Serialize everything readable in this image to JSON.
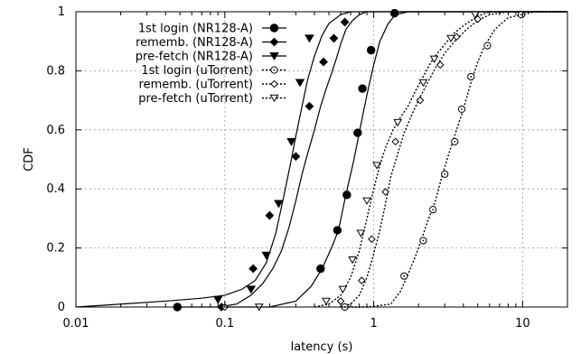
{
  "chart_data": {
    "type": "line",
    "xlabel": "latency (s)",
    "ylabel": "CDF",
    "x_scale": "log",
    "xlim": [
      0.01,
      20
    ],
    "ylim": [
      0,
      1
    ],
    "grid": true,
    "legend_position": "top-left",
    "x_ticks": [
      {
        "value": 0.01,
        "label": "0.01"
      },
      {
        "value": 0.1,
        "label": "0.1"
      },
      {
        "value": 1,
        "label": "1"
      },
      {
        "value": 10,
        "label": "10"
      }
    ],
    "y_ticks": [
      {
        "value": 0,
        "label": "0"
      },
      {
        "value": 0.2,
        "label": "0.2"
      },
      {
        "value": 0.4,
        "label": "0.4"
      },
      {
        "value": 0.6,
        "label": "0.6"
      },
      {
        "value": 0.8,
        "label": "0.8"
      },
      {
        "value": 1,
        "label": "1"
      }
    ],
    "series": [
      {
        "name": "1st login (NR128-A)",
        "dash": "solid",
        "marker": "filled-circle",
        "curve": [
          [
            0.05,
            0
          ],
          [
            0.2,
            0
          ],
          [
            0.3,
            0.02
          ],
          [
            0.38,
            0.07
          ],
          [
            0.45,
            0.13
          ],
          [
            0.52,
            0.2
          ],
          [
            0.58,
            0.26
          ],
          [
            0.65,
            0.38
          ],
          [
            0.73,
            0.49
          ],
          [
            0.8,
            0.59
          ],
          [
            0.86,
            0.67
          ],
          [
            0.92,
            0.74
          ],
          [
            1.0,
            0.82
          ],
          [
            1.1,
            0.9
          ],
          [
            1.25,
            0.96
          ],
          [
            1.4,
            0.99
          ],
          [
            1.7,
            1
          ],
          [
            20,
            1
          ]
        ],
        "markers": [
          [
            0.048,
            0
          ],
          [
            0.44,
            0.13
          ],
          [
            0.57,
            0.26
          ],
          [
            0.66,
            0.38
          ],
          [
            0.78,
            0.59
          ],
          [
            0.84,
            0.74
          ],
          [
            0.96,
            0.87
          ],
          [
            1.38,
            0.995
          ]
        ]
      },
      {
        "name": "rememb. (NR128-A)",
        "dash": "solid",
        "marker": "filled-diamond",
        "curve": [
          [
            0.09,
            0
          ],
          [
            0.12,
            0.01
          ],
          [
            0.15,
            0.04
          ],
          [
            0.18,
            0.08
          ],
          [
            0.21,
            0.13
          ],
          [
            0.24,
            0.19
          ],
          [
            0.27,
            0.27
          ],
          [
            0.3,
            0.36
          ],
          [
            0.33,
            0.45
          ],
          [
            0.36,
            0.52
          ],
          [
            0.4,
            0.6
          ],
          [
            0.44,
            0.68
          ],
          [
            0.48,
            0.74
          ],
          [
            0.52,
            0.79
          ],
          [
            0.56,
            0.84
          ],
          [
            0.6,
            0.89
          ],
          [
            0.65,
            0.94
          ],
          [
            0.72,
            0.97
          ],
          [
            0.8,
            0.99
          ],
          [
            0.9,
            1
          ],
          [
            20,
            1
          ]
        ],
        "markers": [
          [
            0.095,
            0
          ],
          [
            0.155,
            0.13
          ],
          [
            0.2,
            0.31
          ],
          [
            0.3,
            0.51
          ],
          [
            0.37,
            0.68
          ],
          [
            0.46,
            0.83
          ],
          [
            0.54,
            0.91
          ],
          [
            0.64,
            0.965
          ]
        ]
      },
      {
        "name": "pre-fetch (NR128-A)",
        "dash": "solid",
        "marker": "filled-triangle-down",
        "curve": [
          [
            0.01,
            0
          ],
          [
            0.02,
            0.01
          ],
          [
            0.04,
            0.02
          ],
          [
            0.07,
            0.03
          ],
          [
            0.1,
            0.04
          ],
          [
            0.13,
            0.06
          ],
          [
            0.16,
            0.09
          ],
          [
            0.19,
            0.15
          ],
          [
            0.22,
            0.25
          ],
          [
            0.25,
            0.38
          ],
          [
            0.28,
            0.5
          ],
          [
            0.3,
            0.58
          ],
          [
            0.33,
            0.68
          ],
          [
            0.36,
            0.77
          ],
          [
            0.4,
            0.85
          ],
          [
            0.45,
            0.92
          ],
          [
            0.5,
            0.96
          ],
          [
            0.6,
            0.99
          ],
          [
            0.7,
            1
          ],
          [
            20,
            1
          ]
        ],
        "markers": [
          [
            0.09,
            0.025
          ],
          [
            0.15,
            0.06
          ],
          [
            0.19,
            0.175
          ],
          [
            0.23,
            0.35
          ],
          [
            0.28,
            0.56
          ],
          [
            0.32,
            0.76
          ],
          [
            0.37,
            0.91
          ]
        ]
      },
      {
        "name": "1st login (uTorrent)",
        "dash": "dotted",
        "marker": "open-circle",
        "curve": [
          [
            0.6,
            0
          ],
          [
            0.9,
            0
          ],
          [
            1.3,
            0.01
          ],
          [
            1.5,
            0.05
          ],
          [
            1.7,
            0.11
          ],
          [
            1.9,
            0.17
          ],
          [
            2.1,
            0.23
          ],
          [
            2.3,
            0.29
          ],
          [
            2.6,
            0.36
          ],
          [
            2.9,
            0.45
          ],
          [
            3.2,
            0.52
          ],
          [
            3.6,
            0.6
          ],
          [
            4.0,
            0.67
          ],
          [
            4.5,
            0.76
          ],
          [
            5.0,
            0.83
          ],
          [
            5.5,
            0.88
          ],
          [
            6.5,
            0.94
          ],
          [
            8.0,
            0.98
          ],
          [
            10,
            0.99
          ],
          [
            12,
            1
          ],
          [
            20,
            1
          ]
        ],
        "markers": [
          [
            0.64,
            0
          ],
          [
            1.6,
            0.105
          ],
          [
            2.15,
            0.225
          ],
          [
            2.5,
            0.33
          ],
          [
            3.0,
            0.45
          ],
          [
            3.5,
            0.56
          ],
          [
            3.9,
            0.67
          ],
          [
            4.5,
            0.78
          ],
          [
            5.8,
            0.885
          ],
          [
            9.8,
            0.99
          ]
        ]
      },
      {
        "name": "rememb. (uTorrent)",
        "dash": "dotted",
        "marker": "open-diamond",
        "curve": [
          [
            0.6,
            0
          ],
          [
            0.7,
            0.01
          ],
          [
            0.8,
            0.04
          ],
          [
            0.9,
            0.1
          ],
          [
            1.0,
            0.18
          ],
          [
            1.1,
            0.26
          ],
          [
            1.2,
            0.35
          ],
          [
            1.3,
            0.44
          ],
          [
            1.45,
            0.52
          ],
          [
            1.6,
            0.59
          ],
          [
            1.8,
            0.65
          ],
          [
            2.0,
            0.7
          ],
          [
            2.3,
            0.76
          ],
          [
            2.6,
            0.81
          ],
          [
            3.0,
            0.86
          ],
          [
            3.5,
            0.9
          ],
          [
            4.2,
            0.94
          ],
          [
            5.0,
            0.97
          ],
          [
            6.0,
            0.99
          ],
          [
            8.0,
            1
          ],
          [
            20,
            1
          ]
        ],
        "markers": [
          [
            0.1,
            0
          ],
          [
            0.6,
            0.02
          ],
          [
            0.83,
            0.09
          ],
          [
            0.97,
            0.23
          ],
          [
            1.2,
            0.39
          ],
          [
            1.4,
            0.56
          ],
          [
            2.05,
            0.7
          ],
          [
            2.8,
            0.82
          ],
          [
            3.6,
            0.915
          ],
          [
            5.0,
            0.975
          ]
        ]
      },
      {
        "name": "pre-fetch (uTorrent)",
        "dash": "dotted",
        "marker": "open-triangle-down",
        "curve": [
          [
            0.4,
            0
          ],
          [
            0.5,
            0.01
          ],
          [
            0.6,
            0.04
          ],
          [
            0.7,
            0.1
          ],
          [
            0.8,
            0.19
          ],
          [
            0.9,
            0.3
          ],
          [
            1.0,
            0.4
          ],
          [
            1.1,
            0.48
          ],
          [
            1.2,
            0.54
          ],
          [
            1.35,
            0.6
          ],
          [
            1.5,
            0.64
          ],
          [
            1.7,
            0.68
          ],
          [
            1.9,
            0.73
          ],
          [
            2.2,
            0.79
          ],
          [
            2.5,
            0.84
          ],
          [
            3.0,
            0.89
          ],
          [
            3.5,
            0.93
          ],
          [
            4.2,
            0.96
          ],
          [
            5.0,
            0.985
          ],
          [
            6.0,
            1
          ],
          [
            20,
            1
          ]
        ],
        "markers": [
          [
            0.17,
            0
          ],
          [
            0.48,
            0.02
          ],
          [
            0.62,
            0.06
          ],
          [
            0.72,
            0.16
          ],
          [
            0.82,
            0.25
          ],
          [
            0.9,
            0.36
          ],
          [
            1.05,
            0.48
          ],
          [
            1.45,
            0.625
          ],
          [
            2.15,
            0.76
          ],
          [
            2.55,
            0.84
          ],
          [
            3.3,
            0.91
          ],
          [
            4.8,
            0.99
          ]
        ]
      }
    ]
  }
}
